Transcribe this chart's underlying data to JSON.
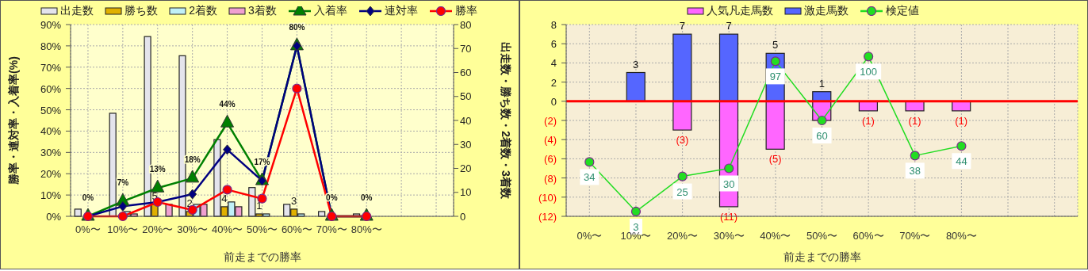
{
  "chart_data": [
    {
      "type": "bar",
      "xlabel": "前走までの勝率",
      "ylabel": "勝率・連対率・入着率(%)",
      "y2label": "出走数・勝ち数・2着数・3着数",
      "categories": [
        "0%〜",
        "10%〜",
        "20%〜",
        "30%〜",
        "40%〜",
        "50%〜",
        "60%〜",
        "70%〜",
        "80%〜",
        null,
        null
      ],
      "series": [
        {
          "name": "出走数",
          "type": "bar",
          "axis": "y2",
          "color": "#e4e4ec",
          "values": [
            3,
            43,
            75,
            67,
            32,
            12,
            5,
            2,
            1,
            null,
            null
          ]
        },
        {
          "name": "勝ち数",
          "type": "bar",
          "axis": "y2",
          "color": "#e0b000",
          "values": [
            0,
            0,
            5,
            2,
            4,
            1,
            3,
            0,
            0,
            null,
            null
          ],
          "value_labels": [
            null,
            null,
            "5",
            "2",
            "4",
            "1",
            "3",
            null,
            null,
            null,
            null
          ]
        },
        {
          "name": "2着数",
          "type": "bar",
          "axis": "y2",
          "color": "#c0f0f8",
          "values": [
            0,
            2,
            0,
            5,
            6,
            1,
            1,
            0,
            0,
            null,
            null
          ]
        },
        {
          "name": "3着数",
          "type": "bar",
          "axis": "y2",
          "color": "#f0a0d0",
          "values": [
            0,
            1,
            5,
            5,
            4,
            0,
            0,
            0,
            0,
            null,
            null
          ]
        },
        {
          "name": "入着率",
          "type": "line",
          "marker": "triangle",
          "color": "#008000",
          "values": [
            0,
            7,
            13.3,
            17.9,
            43.8,
            16.7,
            80,
            0,
            0,
            null,
            null
          ],
          "value_labels": [
            "0%",
            "7%",
            "13%",
            "18%",
            "44%",
            "17%",
            "80%",
            "0%",
            "0%",
            null,
            null
          ]
        },
        {
          "name": "連対率",
          "type": "line",
          "marker": "diamond",
          "color": "#000080",
          "values": [
            0,
            4.7,
            6.7,
            10.4,
            31.3,
            16.7,
            80,
            0,
            0,
            null,
            null
          ]
        },
        {
          "name": "勝率",
          "type": "line",
          "marker": "circle",
          "color": "#ff0000",
          "values": [
            0,
            0,
            6.7,
            3,
            12.5,
            8.3,
            60,
            0,
            0,
            null,
            null
          ]
        }
      ],
      "ylim": [
        0,
        90
      ],
      "yticks": [
        {
          "value": 0,
          "label": "0%"
        },
        {
          "value": 10,
          "label": "10%"
        },
        {
          "value": 20,
          "label": "20%"
        },
        {
          "value": 30,
          "label": "30%"
        },
        {
          "value": 40,
          "label": "40%"
        },
        {
          "value": 50,
          "label": "50%"
        },
        {
          "value": 60,
          "label": "60%"
        },
        {
          "value": 70,
          "label": "70%"
        },
        {
          "value": 80,
          "label": "80%"
        },
        {
          "value": 90,
          "label": "90%"
        }
      ],
      "y2lim": [
        0,
        80
      ],
      "y2ticks": [
        0,
        10,
        20,
        30,
        40,
        50,
        60,
        70,
        80
      ],
      "grid": true,
      "legend": "top"
    },
    {
      "type": "bar",
      "stacked": true,
      "xlabel": "前走までの勝率",
      "categories": [
        "0%〜",
        "10%〜",
        "20%〜",
        "30%〜",
        "40%〜",
        "50%〜",
        "60%〜",
        "70%〜",
        "80%〜",
        null,
        null
      ],
      "series": [
        {
          "name": "人気凡走馬数",
          "type": "bar",
          "color": "#ff66ff",
          "values": [
            0,
            0,
            -3,
            -11,
            -5,
            -2,
            -1,
            -1,
            -1,
            null,
            null
          ],
          "value_labels": [
            null,
            null,
            "(3)",
            "(11)",
            "(5)",
            null,
            "(1)",
            "(1)",
            "(1)",
            null,
            null
          ]
        },
        {
          "name": "激走馬数",
          "type": "bar",
          "color": "#5566ff",
          "values": [
            0,
            3,
            7,
            7,
            5,
            1,
            0,
            0,
            0,
            null,
            null
          ],
          "value_labels": [
            null,
            "3",
            "7",
            "7",
            "5",
            "1",
            null,
            null,
            null,
            null,
            null
          ]
        },
        {
          "name": "検定値",
          "type": "line",
          "axis": "y2",
          "marker": "circle",
          "color": "#22dd22",
          "values": [
            34,
            3,
            25,
            30,
            97,
            60,
            100,
            38,
            44,
            null,
            null
          ],
          "value_labels": [
            "34",
            "3",
            "25",
            "30",
            "97",
            "60",
            "100",
            "38",
            "44",
            null,
            null
          ]
        }
      ],
      "ylim": [
        -12,
        8
      ],
      "yticks": [
        {
          "value": -12,
          "label": "(12)"
        },
        {
          "value": -10,
          "label": "(10)"
        },
        {
          "value": -8,
          "label": "(8)"
        },
        {
          "value": -6,
          "label": "(6)"
        },
        {
          "value": -4,
          "label": "(4)"
        },
        {
          "value": -2,
          "label": "(2)"
        },
        0,
        2,
        4,
        6,
        8
      ],
      "y2lim": [
        0,
        120
      ],
      "ref_lines": [
        {
          "axis": "y",
          "value": 0,
          "color": "#ff0000"
        }
      ],
      "grid": true,
      "legend": "top"
    }
  ]
}
